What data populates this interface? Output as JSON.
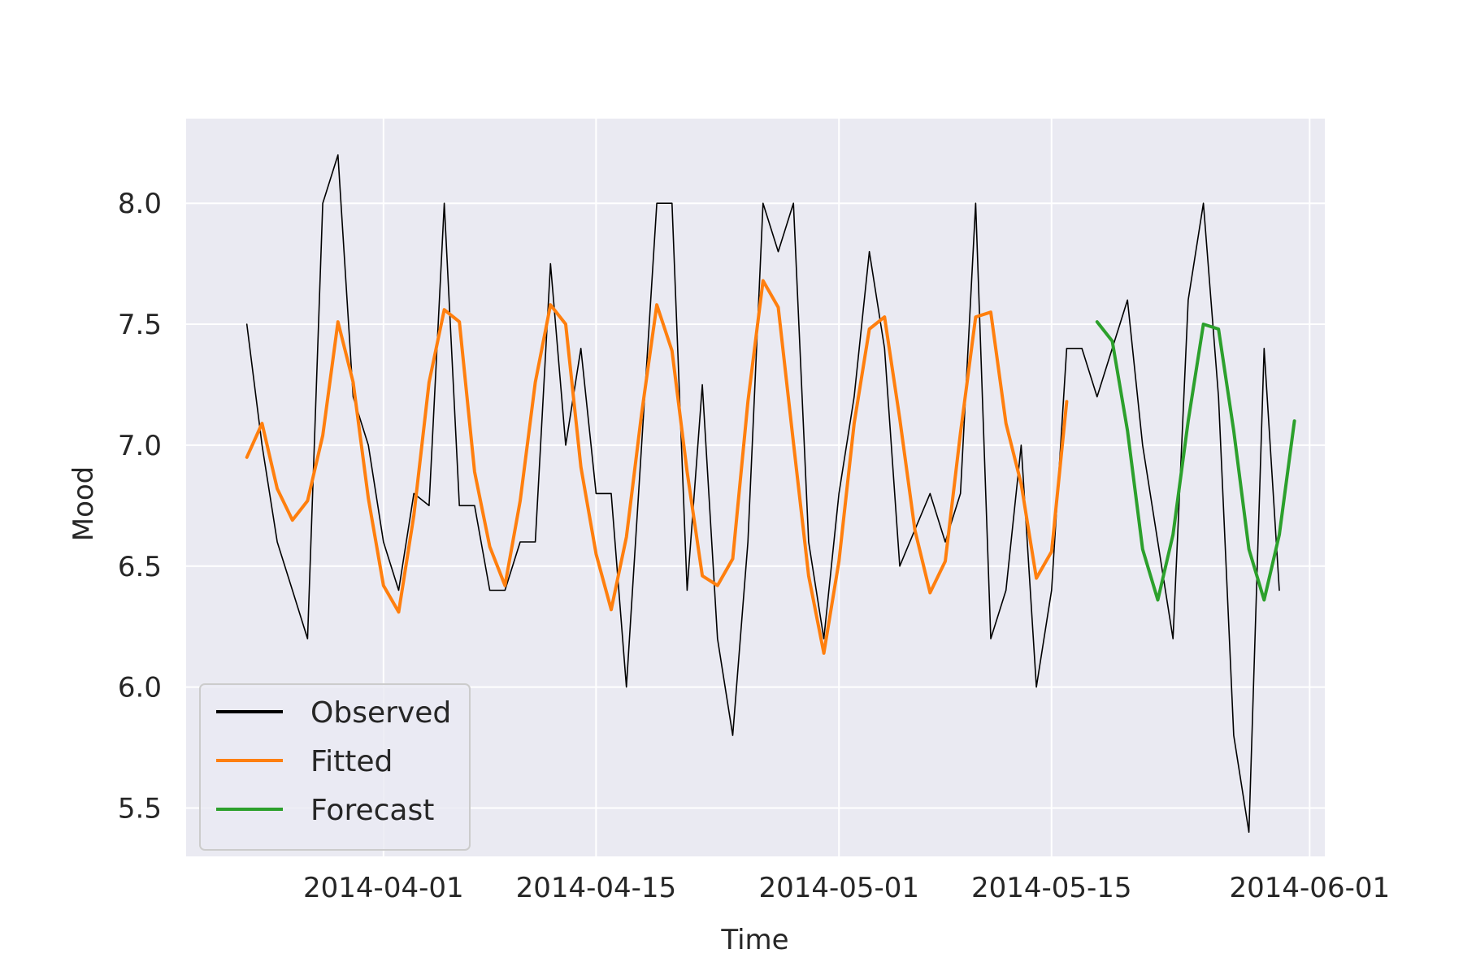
{
  "chart_data": {
    "type": "line",
    "title": "",
    "xlabel": "Time",
    "ylabel": "Mood",
    "x_type": "date",
    "xlim": [
      "2014-03-19",
      "2014-06-02"
    ],
    "ylim": [
      5.3,
      8.35
    ],
    "x_ticks": [
      "2014-04-01",
      "2014-04-15",
      "2014-05-01",
      "2014-05-15",
      "2014-06-01"
    ],
    "y_ticks": [
      5.5,
      6.0,
      6.5,
      7.0,
      7.5,
      8.0
    ],
    "grid": true,
    "legend": {
      "location": "lower-left"
    },
    "series": [
      {
        "name": "Observed",
        "color": "#000000",
        "start_date": "2014-03-23",
        "values": [
          7.5,
          7.0,
          6.6,
          6.4,
          6.2,
          8.0,
          8.2,
          7.2,
          7.0,
          6.6,
          6.4,
          6.8,
          6.75,
          8.0,
          6.75,
          6.75,
          6.4,
          6.4,
          6.6,
          6.6,
          7.75,
          7.0,
          7.4,
          6.8,
          6.8,
          6.0,
          7.0,
          8.0,
          8.0,
          6.4,
          7.25,
          6.2,
          5.8,
          6.6,
          8.0,
          7.8,
          8.0,
          6.6,
          6.2,
          6.8,
          7.2,
          7.8,
          7.4,
          6.5,
          6.65,
          6.8,
          6.6,
          6.8,
          8.0,
          6.2,
          6.4,
          7.0,
          6.0,
          6.4,
          7.4,
          7.4,
          7.2,
          7.4,
          7.6,
          7.0,
          6.6,
          6.2,
          7.6,
          8.0,
          7.2,
          5.8,
          5.4,
          7.4,
          6.4
        ]
      },
      {
        "name": "Fitted",
        "color": "#ff7f0e",
        "start_date": "2014-03-23",
        "values": [
          6.95,
          7.09,
          6.82,
          6.69,
          6.77,
          7.04,
          7.51,
          7.26,
          6.78,
          6.42,
          6.31,
          6.71,
          7.26,
          7.56,
          7.51,
          6.89,
          6.58,
          6.42,
          6.77,
          7.26,
          7.58,
          7.5,
          6.91,
          6.55,
          6.32,
          6.62,
          7.13,
          7.58,
          7.39,
          6.89,
          6.46,
          6.42,
          6.53,
          7.18,
          7.68,
          7.57,
          7.01,
          6.46,
          6.14,
          6.52,
          7.09,
          7.48,
          7.53,
          7.11,
          6.65,
          6.39,
          6.52,
          7.05,
          7.53,
          7.55,
          7.09,
          6.84,
          6.45,
          6.56,
          7.18
        ]
      },
      {
        "name": "Forecast",
        "color": "#2ca02c",
        "start_date": "2014-05-18",
        "values": [
          7.51,
          7.43,
          7.06,
          6.57,
          6.36,
          6.63,
          7.1,
          7.5,
          7.48,
          7.06,
          6.57,
          6.36,
          6.63,
          7.1
        ]
      }
    ]
  }
}
